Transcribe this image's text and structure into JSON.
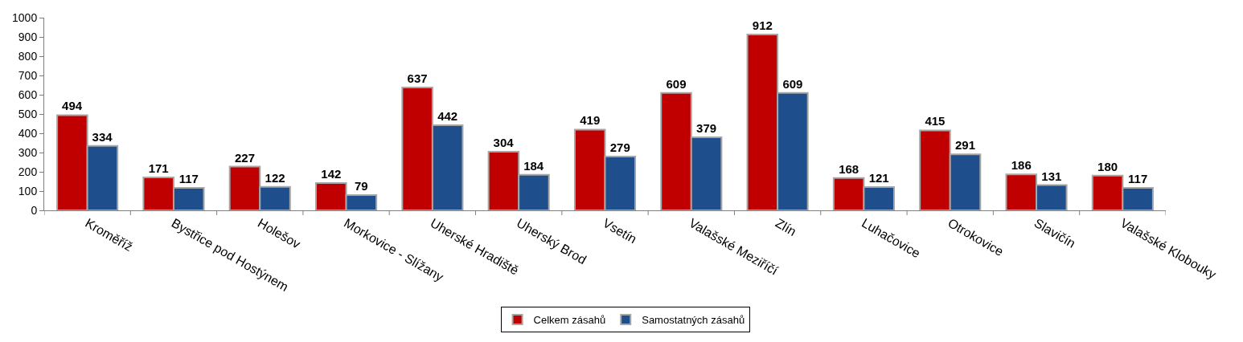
{
  "chart_data": {
    "type": "bar",
    "categories": [
      "Kroměříž",
      "Bystřice pod Hostýnem",
      "Holešov",
      "Morkovice - Slížany",
      "Uherské Hradiště",
      "Uherský Brod",
      "Vsetín",
      "Valašské Meziříčí",
      "Zlín",
      "Luhačovice",
      "Otrokovice",
      "Slavičín",
      "Valašské Klobouky"
    ],
    "series": [
      {
        "name": "Celkem zásahů",
        "color": "#c00000",
        "values": [
          494,
          171,
          227,
          142,
          637,
          304,
          419,
          609,
          912,
          168,
          415,
          186,
          180
        ]
      },
      {
        "name": "Samostatných zásahů",
        "color": "#1f4e8c",
        "values": [
          334,
          117,
          122,
          79,
          442,
          184,
          279,
          379,
          609,
          121,
          291,
          131,
          117
        ]
      }
    ],
    "ylim": [
      0,
      1000
    ],
    "yticks": [
      0,
      100,
      200,
      300,
      400,
      500,
      600,
      700,
      800,
      900,
      1000
    ],
    "grid": false,
    "data_labels": true,
    "legend": "bottom"
  }
}
